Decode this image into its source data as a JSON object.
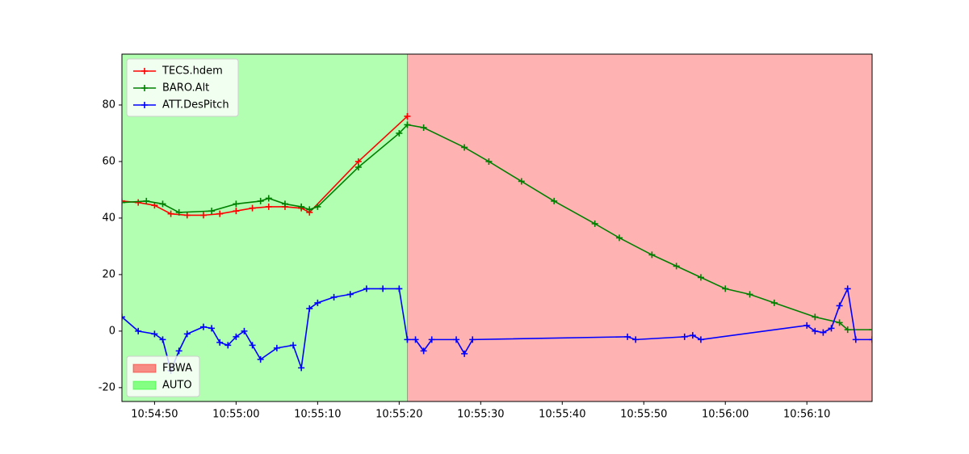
{
  "chart_data": {
    "type": "line",
    "xlim": [
      "10:54:46",
      "10:56:18"
    ],
    "ylim": [
      -24.9,
      98
    ],
    "xticks": [
      "10:54:50",
      "10:55:00",
      "10:55:10",
      "10:55:20",
      "10:55:30",
      "10:55:40",
      "10:55:50",
      "10:56:00",
      "10:56:10"
    ],
    "yticks": [
      -20,
      0,
      20,
      40,
      60,
      80
    ],
    "legend": "upper left",
    "series": [
      {
        "name": "TECS.hdem",
        "color": "#ff0000",
        "x": [
          "10:54:46",
          "10:54:48",
          "10:54:50",
          "10:54:52",
          "10:54:54",
          "10:54:56",
          "10:54:58",
          "10:55:00",
          "10:55:02",
          "10:55:04",
          "10:55:06",
          "10:55:08",
          "10:55:09",
          "10:55:15",
          "10:55:21"
        ],
        "values": [
          46,
          45.5,
          44.5,
          41.5,
          41,
          41,
          41.5,
          42.5,
          43.5,
          44,
          44,
          43.5,
          42,
          60,
          76
        ]
      },
      {
        "name": "BARO.Alt",
        "color": "#008000",
        "x": [
          "10:54:46",
          "10:54:49",
          "10:54:51",
          "10:54:53",
          "10:54:57",
          "10:55:00",
          "10:55:03",
          "10:55:04",
          "10:55:06",
          "10:55:08",
          "10:55:09",
          "10:55:10",
          "10:55:15",
          "10:55:20",
          "10:55:21",
          "10:55:23",
          "10:55:28",
          "10:55:31",
          "10:55:35",
          "10:55:39",
          "10:55:44",
          "10:55:47",
          "10:55:51",
          "10:55:54",
          "10:55:57",
          "10:56:00",
          "10:56:03",
          "10:56:06",
          "10:56:11",
          "10:56:14",
          "10:56:15",
          "10:56:18"
        ],
        "values": [
          45.5,
          46,
          45,
          42,
          42.5,
          45,
          46,
          47,
          45,
          44,
          43,
          44,
          58,
          70,
          73,
          72,
          65,
          60,
          53,
          46,
          38,
          33,
          27,
          23,
          19,
          15,
          13,
          10,
          5,
          3,
          0.5,
          0.5
        ]
      },
      {
        "name": "ATT.DesPitch",
        "color": "#0000ff",
        "x": [
          "10:54:46",
          "10:54:48",
          "10:54:50",
          "10:54:51",
          "10:54:52",
          "10:54:53",
          "10:54:54",
          "10:54:56",
          "10:54:57",
          "10:54:58",
          "10:54:59",
          "10:55:00",
          "10:55:01",
          "10:55:02",
          "10:55:03",
          "10:55:05",
          "10:55:07",
          "10:55:08",
          "10:55:09",
          "10:55:10",
          "10:55:12",
          "10:55:14",
          "10:55:16",
          "10:55:18",
          "10:55:20",
          "10:55:21",
          "10:55:22",
          "10:55:23",
          "10:55:24",
          "10:55:27",
          "10:55:28",
          "10:55:29",
          "10:55:48",
          "10:55:49",
          "10:55:55",
          "10:55:56",
          "10:55:57",
          "10:56:10",
          "10:56:11",
          "10:56:12",
          "10:56:13",
          "10:56:14",
          "10:56:15",
          "10:56:16",
          "10:56:18"
        ],
        "values": [
          5,
          0,
          -1,
          -3,
          -14,
          -7,
          -1,
          1.5,
          1,
          -4,
          -5,
          -2,
          0,
          -5,
          -10,
          -6,
          -5,
          -13,
          8,
          10,
          12,
          13,
          15,
          15,
          15,
          -3,
          -3,
          -7,
          -3,
          -3,
          -8,
          -3,
          -2,
          -3,
          -2,
          -1.5,
          -3,
          2,
          0,
          -0.5,
          1,
          9,
          15,
          -3,
          -3
        ]
      }
    ],
    "spans_legend": "lower left",
    "spans": [
      {
        "name": "FBWA",
        "color": "#ff0000",
        "start": "10:55:21",
        "end": "10:56:18"
      },
      {
        "name": "AUTO",
        "color": "#00ff00",
        "start": "10:54:46",
        "end": "10:55:21"
      }
    ]
  }
}
